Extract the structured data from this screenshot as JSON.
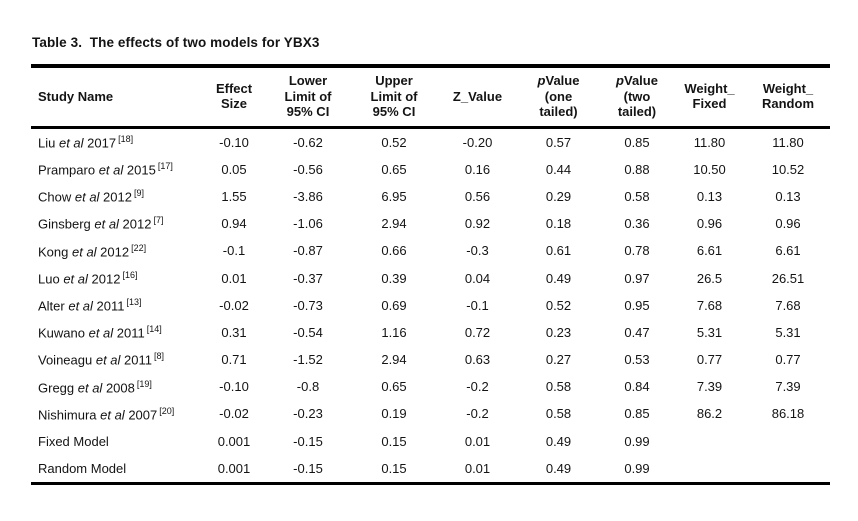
{
  "page": {
    "background": "#ffffff",
    "text_color": "#141414",
    "rule_color": "#000000"
  },
  "title": "Table 3.  The effects of two models for YBX3",
  "table": {
    "headers": [
      {
        "id": "study-name",
        "label": "Study Name",
        "lines": [
          "Study Name"
        ],
        "align": "left"
      },
      {
        "id": "effect-size",
        "label": "Effect Size",
        "lines": [
          "Effect",
          "Size"
        ]
      },
      {
        "id": "lower-limit",
        "label": "Lower Limit of 95% CI",
        "lines": [
          "Lower",
          "Limit of",
          "95% CI"
        ]
      },
      {
        "id": "upper-limit",
        "label": "Upper Limit of 95% CI",
        "lines": [
          "Upper",
          "Limit of",
          "95% CI"
        ]
      },
      {
        "id": "z-value",
        "label": "Z_Value",
        "lines": [
          "Z_Value"
        ]
      },
      {
        "id": "p-one-tailed",
        "label": "pValue (one tailed)",
        "lines": [
          "pValue",
          "(one",
          "tailed)"
        ],
        "italic_p": true
      },
      {
        "id": "p-two-tailed",
        "label": "pValue (two tailed)",
        "lines": [
          "pValue",
          "(two",
          "tailed)"
        ],
        "italic_p": true
      },
      {
        "id": "weight-fixed",
        "label": "Weight_Fixed",
        "lines": [
          "Weight_",
          "Fixed"
        ]
      },
      {
        "id": "weight-random",
        "label": "Weight_Random",
        "lines": [
          "Weight_",
          "Random"
        ]
      }
    ],
    "rows": [
      {
        "study": {
          "pre": "Liu",
          "etal": "et al",
          "post": "2017",
          "ref": "[18]"
        },
        "values": [
          "-0.10",
          "-0.62",
          "0.52",
          "-0.20",
          "0.57",
          "0.85",
          "11.80",
          "11.80"
        ]
      },
      {
        "study": {
          "pre": "Pramparo",
          "etal": "et al",
          "post": "2015",
          "ref": "[17]"
        },
        "values": [
          "0.05",
          "-0.56",
          "0.65",
          "0.16",
          "0.44",
          "0.88",
          "10.50",
          "10.52"
        ]
      },
      {
        "study": {
          "pre": "Chow",
          "etal": "et al",
          "post": "2012",
          "ref": "[9]"
        },
        "values": [
          "1.55",
          "-3.86",
          "6.95",
          "0.56",
          "0.29",
          "0.58",
          "0.13",
          "0.13"
        ]
      },
      {
        "study": {
          "pre": "Ginsberg",
          "etal": "et al",
          "post": "2012",
          "ref": "[7]"
        },
        "values": [
          "0.94",
          "-1.06",
          "2.94",
          "0.92",
          "0.18",
          "0.36",
          "0.96",
          "0.96"
        ]
      },
      {
        "study": {
          "pre": "Kong",
          "etal": "et al",
          "post": "2012",
          "ref": "[22]"
        },
        "values": [
          "-0.1",
          "-0.87",
          "0.66",
          "-0.3",
          "0.61",
          "0.78",
          "6.61",
          "6.61"
        ]
      },
      {
        "study": {
          "pre": "Luo",
          "etal": "et al",
          "post": "2012",
          "ref": "[16]"
        },
        "values": [
          "0.01",
          "-0.37",
          "0.39",
          "0.04",
          "0.49",
          "0.97",
          "26.5",
          "26.51"
        ]
      },
      {
        "study": {
          "pre": "Alter",
          "etal": "et al",
          "post": "2011",
          "ref": "[13]"
        },
        "values": [
          "-0.02",
          "-0.73",
          "0.69",
          "-0.1",
          "0.52",
          "0.95",
          "7.68",
          "7.68"
        ]
      },
      {
        "study": {
          "pre": "Kuwano",
          "etal": "et al",
          "post": "2011",
          "ref": "[14]"
        },
        "values": [
          "0.31",
          "-0.54",
          "1.16",
          "0.72",
          "0.23",
          "0.47",
          "5.31",
          "5.31"
        ]
      },
      {
        "study": {
          "pre": "Voineagu",
          "etal": "et al",
          "post": "2011",
          "ref": "[8]"
        },
        "values": [
          "0.71",
          "-1.52",
          "2.94",
          "0.63",
          "0.27",
          "0.53",
          "0.77",
          "0.77"
        ]
      },
      {
        "study": {
          "pre": "Gregg",
          "etal": "et al",
          "post": "2008",
          "ref": "[19]"
        },
        "values": [
          "-0.10",
          "-0.8",
          "0.65",
          "-0.2",
          "0.58",
          "0.84",
          "7.39",
          "7.39"
        ]
      },
      {
        "study": {
          "pre": "Nishimura",
          "etal": "et al",
          "post": "2007",
          "ref": "[20]"
        },
        "values": [
          "-0.02",
          "-0.23",
          "0.19",
          "-0.2",
          "0.58",
          "0.85",
          "86.2",
          "86.18"
        ]
      },
      {
        "study": {
          "pre": "Fixed Model",
          "etal": "",
          "post": "",
          "ref": ""
        },
        "values": [
          "0.001",
          "-0.15",
          "0.15",
          "0.01",
          "0.49",
          "0.99",
          "",
          ""
        ]
      },
      {
        "study": {
          "pre": "Random Model",
          "etal": "",
          "post": "",
          "ref": ""
        },
        "values": [
          "0.001",
          "-0.15",
          "0.15",
          "0.01",
          "0.49",
          "0.99",
          "",
          ""
        ]
      }
    ]
  }
}
